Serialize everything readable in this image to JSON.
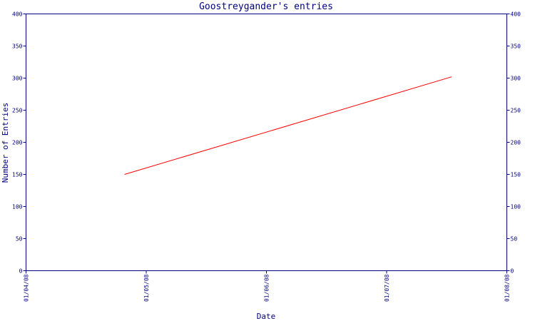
{
  "chart_data": {
    "type": "line",
    "title": "Goostreygander's entries",
    "xlabel": "Date",
    "ylabel": "Number of Entries",
    "x_ticks": [
      "01/04/08",
      "01/05/08",
      "01/06/08",
      "01/07/08",
      "01/08/08"
    ],
    "xlim": [
      "2008-04-01",
      "2008-08-01"
    ],
    "ylim": [
      0,
      400
    ],
    "y_ticks": [
      0,
      50,
      100,
      150,
      200,
      250,
      300,
      350,
      400
    ],
    "series": [
      {
        "x": [
          "2008-04-26",
          "2008-07-18"
        ],
        "y": [
          150,
          302
        ]
      }
    ],
    "grid": false,
    "colors": {
      "axis": "#000080",
      "line": "#ff0000",
      "text": "#000080"
    }
  }
}
